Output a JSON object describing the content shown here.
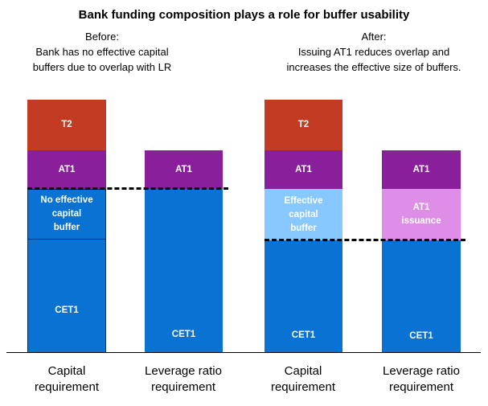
{
  "title": "Bank funding composition plays a role for buffer usability",
  "before": {
    "heading": "Before:",
    "line1": "Bank has no effective capital",
    "line2": "buffers due to overlap with LR"
  },
  "after": {
    "heading": "After:",
    "line1": "Issuing AT1 reduces overlap and",
    "line2": "increases the effective size of buffers."
  },
  "bars": [
    {
      "label_line1": "Capital",
      "label_line2": "requirement",
      "segments": {
        "t2": "T2",
        "at1": "AT1",
        "buffer_l1": "No effective",
        "buffer_l2": "capital",
        "buffer_l3": "buffer",
        "cet1": "CET1"
      }
    },
    {
      "label_line1": "Leverage ratio",
      "label_line2": "requirement",
      "segments": {
        "at1": "AT1",
        "cet1": "CET1"
      }
    },
    {
      "label_line1": "Capital",
      "label_line2": "requirement",
      "segments": {
        "t2": "T2",
        "at1": "AT1",
        "buffer_l1": "Effective",
        "buffer_l2": "capital",
        "buffer_l3": "buffer",
        "cet1": "CET1"
      }
    },
    {
      "label_line1": "Leverage ratio",
      "label_line2": "requirement",
      "segments": {
        "at1": "AT1",
        "issuance_l1": "AT1",
        "issuance_l2": "issuance",
        "cet1": "CET1"
      }
    }
  ],
  "colors": {
    "t2": "#c33b22",
    "at1": "#8a1f9c",
    "cet1": "#0a72d2",
    "effective_buffer": "#86c8ff",
    "at1_issuance": "#de8ee6"
  }
}
